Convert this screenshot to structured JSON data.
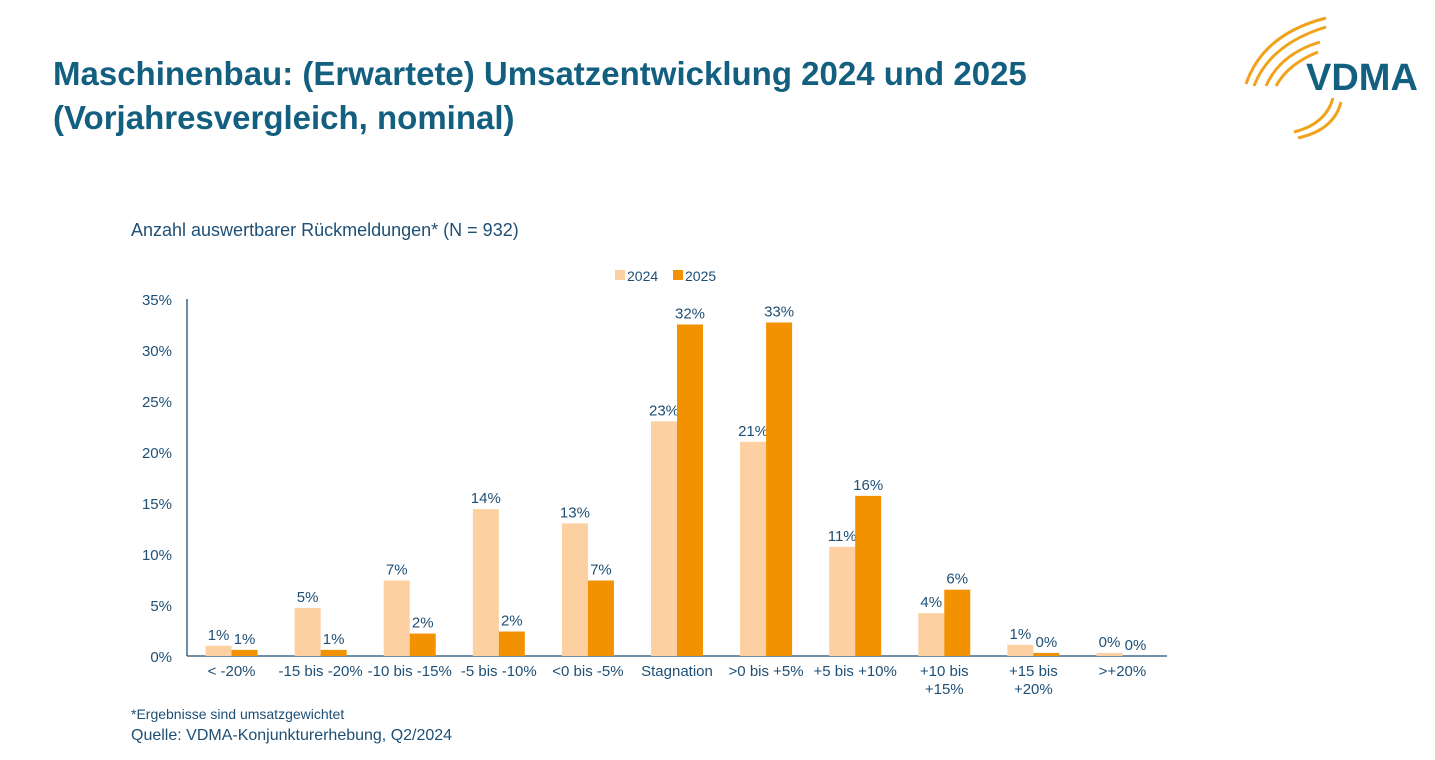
{
  "title_line1": "Maschinenbau: (Erwartete) Umsatzentwicklung 2024 und 2025",
  "title_line2": "(Vorjahresvergleich, nominal)",
  "subtitle": "Anzahl auswertbarer Rückmeldungen* (N = 932)",
  "footnote": "*Ergebnisse sind umsatzgewichtet",
  "source": "Quelle: VDMA-Konjunkturerhebung, Q2/2024",
  "logo_text": "VDMA",
  "colors": {
    "s2024": "#fdd0a2",
    "s2025": "#f39200",
    "text": "#1e4f75",
    "title": "#135f80"
  },
  "chart_data": {
    "type": "bar",
    "categories": [
      [
        "< -20%"
      ],
      [
        "-15 bis -20%"
      ],
      [
        "-10 bis -15%"
      ],
      [
        "-5 bis -10%"
      ],
      [
        "<0 bis -5%"
      ],
      [
        "Stagnation"
      ],
      [
        ">0 bis +5%"
      ],
      [
        "+5 bis +10%"
      ],
      [
        "+10 bis",
        "+15%"
      ],
      [
        "+15 bis",
        "+20%"
      ],
      [
        ">+20%"
      ]
    ],
    "series": [
      {
        "name": "2024",
        "values": [
          1.0,
          4.7,
          7.4,
          14.4,
          13.0,
          23.0,
          21.0,
          10.7,
          4.2,
          1.1,
          0.3
        ],
        "labels": [
          "1%",
          "5%",
          "7%",
          "14%",
          "13%",
          "23%",
          "21%",
          "11%",
          "4%",
          "1%",
          "0%"
        ]
      },
      {
        "name": "2025",
        "values": [
          0.6,
          0.6,
          2.2,
          2.4,
          7.4,
          32.5,
          32.7,
          15.7,
          6.5,
          0.3,
          0.0
        ],
        "labels": [
          "1%",
          "1%",
          "2%",
          "2%",
          "7%",
          "32%",
          "33%",
          "16%",
          "6%",
          "0%",
          "0%"
        ]
      }
    ],
    "yticks": [
      "0%",
      "5%",
      "10%",
      "15%",
      "20%",
      "25%",
      "30%",
      "35%"
    ],
    "ylim": [
      0,
      35
    ],
    "grid": false,
    "legend": "top-center"
  }
}
